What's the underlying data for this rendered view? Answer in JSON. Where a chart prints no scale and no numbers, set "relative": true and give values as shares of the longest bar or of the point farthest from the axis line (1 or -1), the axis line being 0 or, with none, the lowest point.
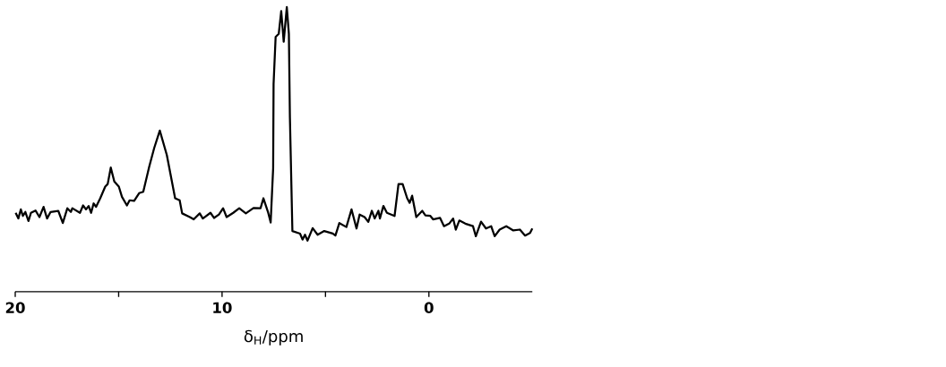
{
  "chart_data": {
    "type": "line",
    "xlabel": "δ$_{H}$/ppm",
    "relative": true,
    "xlim": [
      20,
      -5
    ],
    "xticks": [
      20,
      {
        "value": 15,
        "label": null
      },
      10,
      {
        "value": 5,
        "label": null
      },
      0
    ],
    "x": [
      19.98,
      19.85,
      19.73,
      19.63,
      19.51,
      19.36,
      19.24,
      19.02,
      18.83,
      18.63,
      18.46,
      18.29,
      17.92,
      17.7,
      17.48,
      17.31,
      17.24,
      16.87,
      16.72,
      16.58,
      16.45,
      16.33,
      16.21,
      16.09,
      15.89,
      15.65,
      15.53,
      15.38,
      15.21,
      14.99,
      14.84,
      14.6,
      14.47,
      14.25,
      14.01,
      13.81,
      13.52,
      13.28,
      13.01,
      12.67,
      12.47,
      12.27,
      12.05,
      11.93,
      11.56,
      11.37,
      11.08,
      10.93,
      10.56,
      10.39,
      10.15,
      9.95,
      9.78,
      9.46,
      9.17,
      8.85,
      8.48,
      8.14,
      8.0,
      7.78,
      7.65,
      7.53,
      7.51,
      7.41,
      7.26,
      7.14,
      7.02,
      6.87,
      6.77,
      6.72,
      6.6,
      6.23,
      6.11,
      5.99,
      5.87,
      5.62,
      5.38,
      5.06,
      4.65,
      4.52,
      4.33,
      3.99,
      3.74,
      3.5,
      3.35,
      3.11,
      2.93,
      2.76,
      2.62,
      2.44,
      2.37,
      2.2,
      2.03,
      1.66,
      1.47,
      1.27,
      1.05,
      0.93,
      0.81,
      0.61,
      0.32,
      0.17,
      -0.07,
      -0.2,
      -0.54,
      -0.73,
      -0.98,
      -1.17,
      -1.3,
      -1.47,
      -1.76,
      -2.13,
      -2.27,
      -2.52,
      -2.76,
      -3.01,
      -3.18,
      -3.42,
      -3.74,
      -4.08,
      -4.4,
      -4.65,
      -4.89,
      -5.0
    ],
    "series": [
      {
        "color": "#000000",
        "values": [
          0.277,
          0.257,
          0.289,
          0.266,
          0.28,
          0.248,
          0.277,
          0.285,
          0.262,
          0.298,
          0.257,
          0.28,
          0.284,
          0.241,
          0.293,
          0.28,
          0.293,
          0.277,
          0.303,
          0.289,
          0.301,
          0.277,
          0.31,
          0.298,
          0.328,
          0.369,
          0.378,
          0.436,
          0.387,
          0.369,
          0.333,
          0.303,
          0.321,
          0.319,
          0.346,
          0.351,
          0.44,
          0.505,
          0.566,
          0.48,
          0.404,
          0.328,
          0.321,
          0.275,
          0.262,
          0.254,
          0.275,
          0.257,
          0.277,
          0.259,
          0.271,
          0.293,
          0.262,
          0.277,
          0.293,
          0.275,
          0.294,
          0.293,
          0.328,
          0.28,
          0.243,
          0.434,
          0.729,
          0.895,
          0.906,
          0.986,
          0.878,
          1.0,
          0.906,
          0.612,
          0.213,
          0.204,
          0.183,
          0.2,
          0.179,
          0.223,
          0.2,
          0.213,
          0.204,
          0.197,
          0.241,
          0.227,
          0.289,
          0.222,
          0.271,
          0.262,
          0.245,
          0.284,
          0.257,
          0.284,
          0.257,
          0.301,
          0.277,
          0.266,
          0.378,
          0.378,
          0.328,
          0.312,
          0.337,
          0.262,
          0.284,
          0.268,
          0.266,
          0.254,
          0.259,
          0.23,
          0.239,
          0.257,
          0.218,
          0.25,
          0.239,
          0.23,
          0.195,
          0.246,
          0.222,
          0.23,
          0.195,
          0.218,
          0.23,
          0.215,
          0.218,
          0.197,
          0.206,
          0.222
        ]
      }
    ]
  }
}
